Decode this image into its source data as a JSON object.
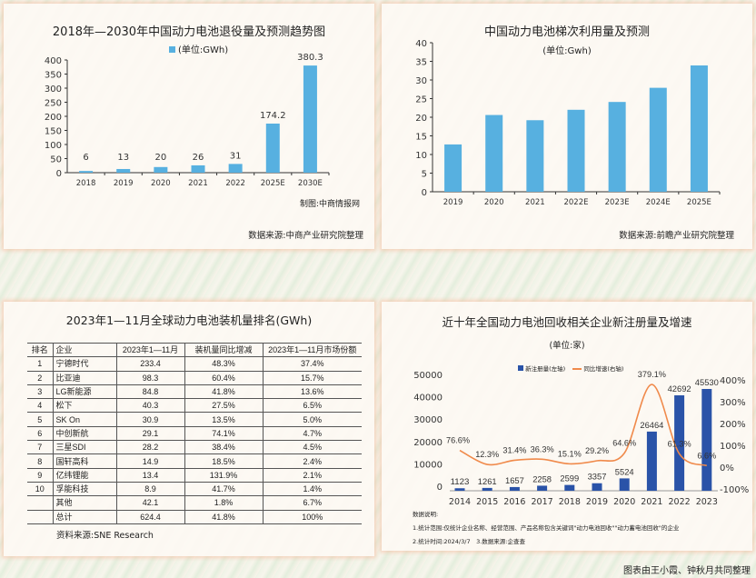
{
  "colors": {
    "bar_light": "#57b0e0",
    "bar_dark": "#2a53a8",
    "line": "#f08a4b"
  },
  "chart_data": [
    {
      "type": "bar",
      "title": "2018年—2030年中国动力电池退役量及预测趋势图",
      "legend": "(单位:GWh)",
      "categories": [
        "2018",
        "2019",
        "2020",
        "2021",
        "2022",
        "2025E",
        "2030E"
      ],
      "values": [
        6,
        13,
        20,
        26,
        31,
        174.2,
        380.3
      ],
      "labels": [
        "6",
        "13",
        "20",
        "26",
        "31",
        "174.2",
        "380.3"
      ],
      "ylim": [
        0,
        400
      ],
      "yticks": [
        "0",
        "50",
        "100",
        "150",
        "200",
        "250",
        "300",
        "350",
        "400"
      ],
      "credit": "制图:中商情报网",
      "source": "数据来源:中商产业研究院整理"
    },
    {
      "type": "bar",
      "title": "中国动力电池梯次利用量及预测",
      "unit": "(单位:Gwh)",
      "categories": [
        "2019",
        "2020",
        "2021",
        "2022E",
        "2023E",
        "2024E",
        "2025E"
      ],
      "values": [
        12.7,
        20.6,
        19.2,
        22.0,
        24.1,
        27.9,
        33.9
      ],
      "ylim": [
        0,
        40
      ],
      "yticks": [
        "0",
        "5",
        "10",
        "15",
        "20",
        "25",
        "30",
        "35",
        "40"
      ],
      "source": "数据来源:前瞻产业研究院整理"
    },
    {
      "type": "table",
      "title": "2023年1—11月全球动力电池装机量排名(GWh)",
      "columns": [
        "排名",
        "企业",
        "2023年1—11月",
        "装机量同比增减",
        "2023年1—11月市场份额"
      ],
      "rows": [
        [
          "1",
          "宁德时代",
          "233.4",
          "48.3%",
          "37.4%"
        ],
        [
          "2",
          "比亚迪",
          "98.3",
          "60.4%",
          "15.7%"
        ],
        [
          "3",
          "LG新能源",
          "84.8",
          "41.8%",
          "13.6%"
        ],
        [
          "4",
          "松下",
          "40.3",
          "27.5%",
          "6.5%"
        ],
        [
          "5",
          "SK On",
          "30.9",
          "13.5%",
          "5.0%"
        ],
        [
          "6",
          "中创新航",
          "29.1",
          "74.1%",
          "4.7%"
        ],
        [
          "7",
          "三星SDI",
          "28.2",
          "38.4%",
          "4.5%"
        ],
        [
          "8",
          "国轩高科",
          "14.9",
          "18.5%",
          "2.4%"
        ],
        [
          "9",
          "亿纬锂能",
          "13.4",
          "131.9%",
          "2.1%"
        ],
        [
          "10",
          "孚能科技",
          "8.9",
          "41.7%",
          "1.4%"
        ],
        [
          "",
          "其他",
          "42.1",
          "1.8%",
          "6.7%"
        ],
        [
          "",
          "总计",
          "624.4",
          "41.8%",
          "100%"
        ]
      ],
      "source": "资料来源:SNE Research"
    },
    {
      "type": "bar+line",
      "title": "近十年全国动力电池回收相关企业新注册量及增速",
      "unit": "(单位:家)",
      "categories": [
        "2014",
        "2015",
        "2016",
        "2017",
        "2018",
        "2019",
        "2020",
        "2021",
        "2022",
        "2023"
      ],
      "series": [
        {
          "name": "新注册量(左轴)",
          "values": [
            1123,
            1261,
            1657,
            2258,
            2599,
            3357,
            5524,
            26464,
            42692,
            45530
          ]
        },
        {
          "name": "同比增速(右轴)",
          "values": [
            76.6,
            12.3,
            31.4,
            36.3,
            15.1,
            29.2,
            64.6,
            379.1,
            61.3,
            6.6
          ],
          "labels": [
            "76.6%",
            "12.3%",
            "31.4%",
            "36.3%",
            "15.1%",
            "29.2%",
            "64.6%",
            "379.1%",
            "61.3%",
            "6.6%"
          ]
        }
      ],
      "ylim_left": [
        0,
        50000
      ],
      "yticks_left": [
        "0",
        "10000",
        "20000",
        "30000",
        "40000",
        "50000"
      ],
      "ylim_right": [
        -100,
        400
      ],
      "yticks_right": [
        "-100%",
        "0%",
        "100%",
        "200%",
        "300%",
        "400%"
      ],
      "notes": [
        "数据说明:",
        "1.统计范围:仅统计企业名称、经营范围、产品名称包含关键词\"动力电池回收\"\"动力蓄电池回收\"的企业",
        "2.统计时间:2024/3/7　3.数据来源:企查查"
      ]
    }
  ],
  "footer": "图表由王小霞、钟秋月共同整理"
}
